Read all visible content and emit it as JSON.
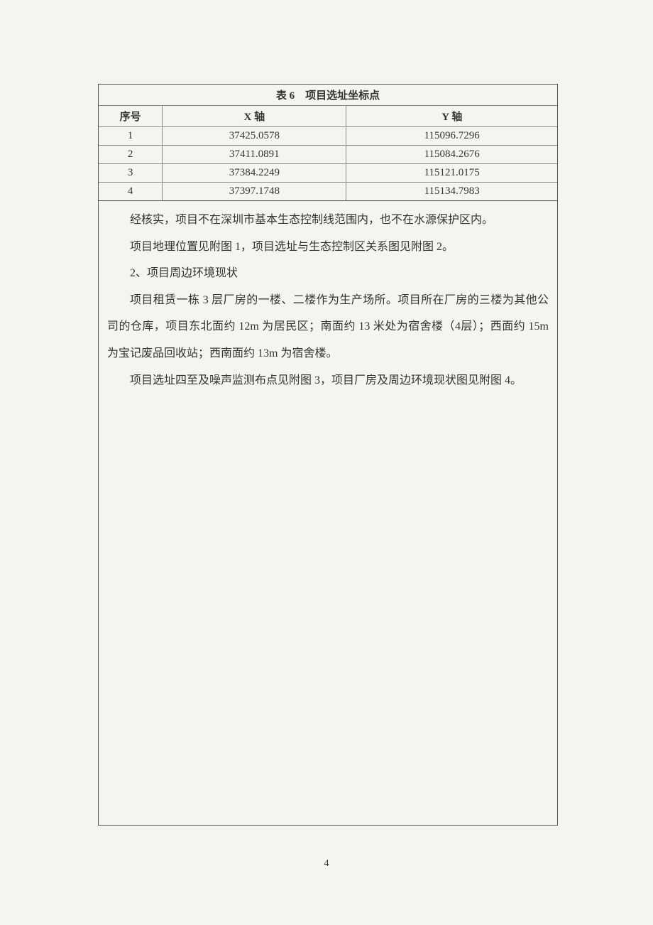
{
  "table": {
    "caption": "表 6 项目选址坐标点",
    "columns": [
      "序号",
      "X 轴",
      "Y 轴"
    ],
    "rows": [
      [
        "1",
        "37425.0578",
        "115096.7296"
      ],
      [
        "2",
        "37411.0891",
        "115084.2676"
      ],
      [
        "3",
        "37384.2249",
        "115121.0175"
      ],
      [
        "4",
        "37397.1748",
        "115134.7983"
      ]
    ],
    "border_color": "#888888",
    "header_font_weight": "bold",
    "font_size": 15
  },
  "paragraphs": {
    "p1": "经核实，项目不在深圳市基本生态控制线范围内，也不在水源保护区内。",
    "p2": "项目地理位置见附图 1，项目选址与生态控制区关系图见附图 2。",
    "p3": "2、项目周边环境现状",
    "p4": "项目租赁一栋 3 层厂房的一楼、二楼作为生产场所。项目所在厂房的三楼为其他公司的仓库，项目东北面约 12m 为居民区；南面约 13 米处为宿舍楼（4层）；西面约 15m 为宝记废品回收站；西南面约 13m 为宿舍楼。",
    "p5": "项目选址四至及噪声监测布点见附图 3，项目厂房及周边环境现状图见附图 4。"
  },
  "page_number": "4",
  "styles": {
    "background_color": "#f5f5f0",
    "text_color": "#333333",
    "body_font_size": 16,
    "line_height": 2.35
  }
}
